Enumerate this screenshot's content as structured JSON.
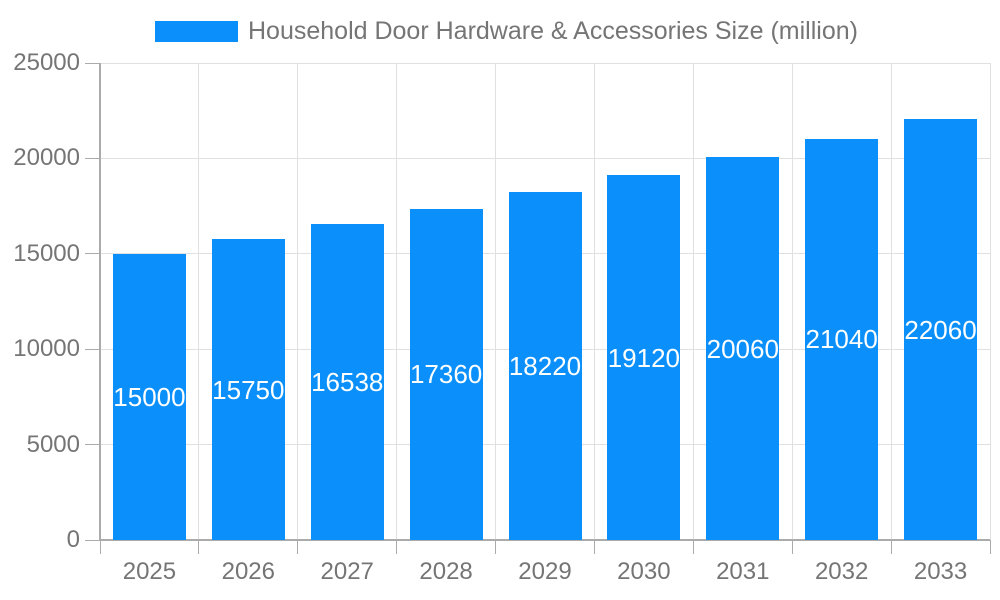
{
  "legend": {
    "label": "Household Door Hardware & Accessories Size (million)"
  },
  "chart_data": {
    "type": "bar",
    "title": "Household Door Hardware & Accessories Size (million)",
    "categories": [
      "2025",
      "2026",
      "2027",
      "2028",
      "2029",
      "2030",
      "2031",
      "2032",
      "2033"
    ],
    "values": [
      15000,
      15750,
      16538,
      17360,
      18220,
      19120,
      20060,
      21040,
      22060
    ],
    "xlabel": "",
    "ylabel": "",
    "ylim": [
      0,
      25000
    ],
    "yticks": [
      0,
      5000,
      10000,
      15000,
      20000,
      25000
    ],
    "grid": true,
    "legend_position": "top",
    "bar_color": "#0b90fb",
    "value_label_color": "#ffffff",
    "text_color": "#757575",
    "grid_color": "#e0e0e0",
    "axis_color": "#ababab",
    "background_color": "#ffffff"
  }
}
